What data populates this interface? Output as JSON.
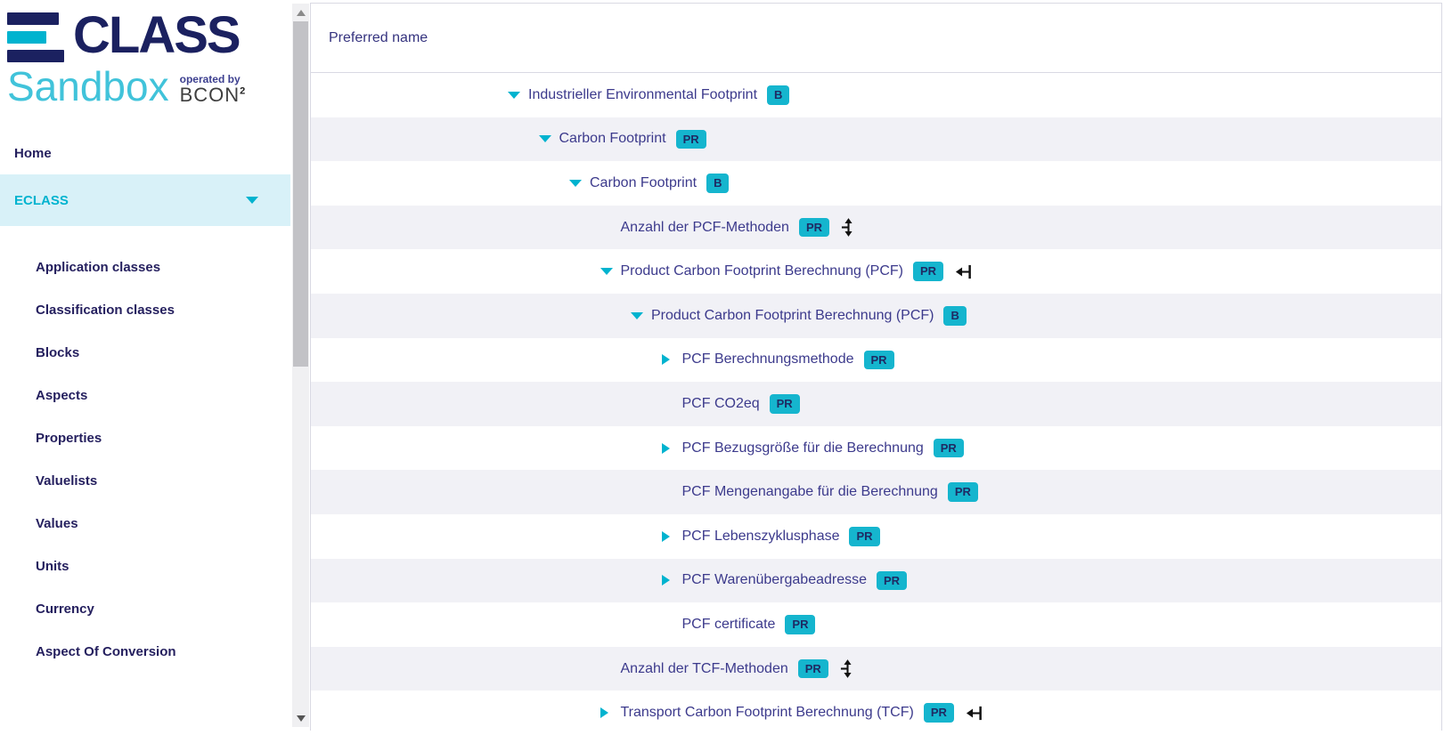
{
  "theme": {
    "accent_cyan": "#00b3cf",
    "navy": "#241f5e",
    "navy_logo": "#1b2160",
    "tree_text": "#3c3a8c",
    "header_text": "#35337f",
    "badge_bg": "#15b5ce",
    "badge_text": "#1f2a63",
    "selected_bg": "#d8f1f8",
    "row_alt_bg": "#f1f1f6",
    "border": "#d9d9e3"
  },
  "sidebar": {
    "logo": {
      "brand": "CLASS",
      "subtitle": "Sandbox",
      "operated_by": "operated by",
      "operator": "BCON",
      "operator_sup": "2"
    },
    "items": [
      {
        "label": "Home",
        "kind": "top"
      },
      {
        "label": "ECLASS",
        "kind": "top",
        "selected": true,
        "caret": "down"
      },
      {
        "label": "Application classes",
        "kind": "sub"
      },
      {
        "label": "Classification classes",
        "kind": "sub"
      },
      {
        "label": "Blocks",
        "kind": "sub"
      },
      {
        "label": "Aspects",
        "kind": "sub"
      },
      {
        "label": "Properties",
        "kind": "sub"
      },
      {
        "label": "Valuelists",
        "kind": "sub"
      },
      {
        "label": "Values",
        "kind": "sub"
      },
      {
        "label": "Units",
        "kind": "sub"
      },
      {
        "label": "Currency",
        "kind": "sub"
      },
      {
        "label": "Aspect Of Conversion",
        "kind": "sub"
      }
    ]
  },
  "tree_panel": {
    "header": "Preferred name",
    "rows": [
      {
        "label": "Industrieller Environmental Footprint",
        "badge": "B",
        "level": 0,
        "state": "expanded",
        "trailing_icon": null
      },
      {
        "label": "Carbon Footprint",
        "badge": "PR",
        "level": 1,
        "state": "expanded",
        "trailing_icon": null
      },
      {
        "label": "Carbon Footprint",
        "badge": "B",
        "level": 2,
        "state": "expanded",
        "trailing_icon": null
      },
      {
        "label": "Anzahl der PCF-Methoden",
        "badge": "PR",
        "level": 3,
        "state": "leaf",
        "trailing_icon": "vertical-arrows"
      },
      {
        "label": "Product Carbon Footprint Berechnung (PCF)",
        "badge": "PR",
        "level": 3,
        "state": "expanded",
        "trailing_icon": "arrow-to-bar"
      },
      {
        "label": "Product Carbon Footprint Berechnung (PCF)",
        "badge": "B",
        "level": 4,
        "state": "expanded",
        "trailing_icon": null
      },
      {
        "label": "PCF Berechnungsmethode",
        "badge": "PR",
        "level": 5,
        "state": "collapsed",
        "trailing_icon": null
      },
      {
        "label": "PCF CO2eq",
        "badge": "PR",
        "level": 5,
        "state": "leaf",
        "trailing_icon": null
      },
      {
        "label": "PCF Bezugsgröße für die Berechnung",
        "badge": "PR",
        "level": 5,
        "state": "collapsed",
        "trailing_icon": null
      },
      {
        "label": "PCF Mengenangabe für die Berechnung",
        "badge": "PR",
        "level": 5,
        "state": "leaf",
        "trailing_icon": null
      },
      {
        "label": "PCF Lebenszyklusphase",
        "badge": "PR",
        "level": 5,
        "state": "collapsed",
        "trailing_icon": null
      },
      {
        "label": "PCF Warenübergabeadresse",
        "badge": "PR",
        "level": 5,
        "state": "collapsed",
        "trailing_icon": null
      },
      {
        "label": "PCF certificate",
        "badge": "PR",
        "level": 5,
        "state": "leaf",
        "trailing_icon": null
      },
      {
        "label": "Anzahl der TCF-Methoden",
        "badge": "PR",
        "level": 3,
        "state": "leaf",
        "trailing_icon": "vertical-arrows"
      },
      {
        "label": "Transport Carbon Footprint Berechnung (TCF)",
        "badge": "PR",
        "level": 3,
        "state": "collapsed",
        "trailing_icon": "arrow-to-bar"
      }
    ]
  }
}
